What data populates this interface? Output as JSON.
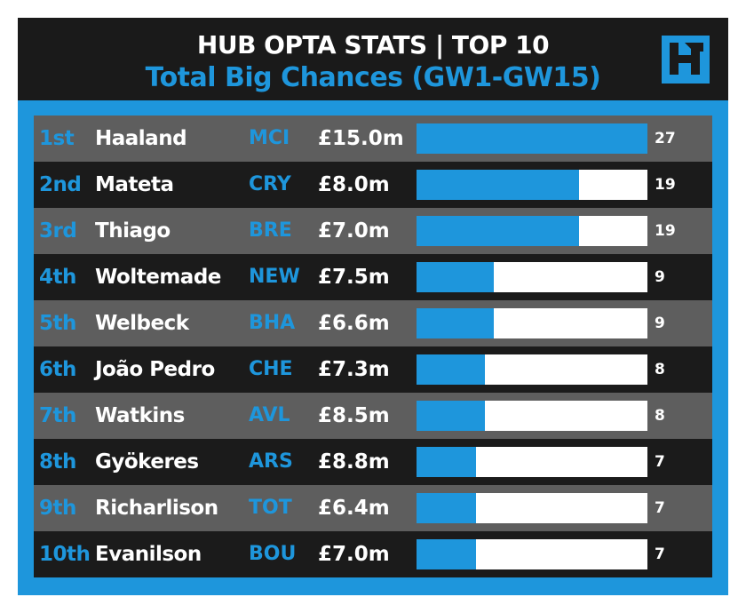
{
  "header": {
    "title": "HUB OPTA STATS | TOP 10",
    "subtitle": "Total Big Chances (GW1-GW15)"
  },
  "colors": {
    "accent": "#1e96dc",
    "header_bg": "#1a1a1a",
    "row_light": "#5e5e5e",
    "row_dark": "#1b1b1b",
    "bar_track": "#ffffff"
  },
  "logo": {
    "icon": "hub-logo-icon"
  },
  "chart_data": {
    "type": "bar",
    "title": "Total Big Chances (GW1-GW15)",
    "xlabel": "",
    "ylabel": "",
    "xlim": [
      0,
      27
    ],
    "categories": [
      "Haaland",
      "Mateta",
      "Thiago",
      "Woltemade",
      "Welbeck",
      "João Pedro",
      "Watkins",
      "Gyökeres",
      "Richarlison",
      "Evanilson"
    ],
    "values": [
      27,
      19,
      19,
      9,
      9,
      8,
      8,
      7,
      7,
      7
    ],
    "rows": [
      {
        "rank": "1st",
        "player": "Haaland",
        "team": "MCI",
        "price": "£15.0m",
        "value": 27
      },
      {
        "rank": "2nd",
        "player": "Mateta",
        "team": "CRY",
        "price": "£8.0m",
        "value": 19
      },
      {
        "rank": "3rd",
        "player": "Thiago",
        "team": "BRE",
        "price": "£7.0m",
        "value": 19
      },
      {
        "rank": "4th",
        "player": "Woltemade",
        "team": "NEW",
        "price": "£7.5m",
        "value": 9
      },
      {
        "rank": "5th",
        "player": "Welbeck",
        "team": "BHA",
        "price": "£6.6m",
        "value": 9
      },
      {
        "rank": "6th",
        "player": "João Pedro",
        "team": "CHE",
        "price": "£7.3m",
        "value": 8
      },
      {
        "rank": "7th",
        "player": "Watkins",
        "team": "AVL",
        "price": "£8.5m",
        "value": 8
      },
      {
        "rank": "8th",
        "player": "Gyökeres",
        "team": "ARS",
        "price": "£8.8m",
        "value": 7
      },
      {
        "rank": "9th",
        "player": "Richarlison",
        "team": "TOT",
        "price": "£6.4m",
        "value": 7
      },
      {
        "rank": "10th",
        "player": "Evanilson",
        "team": "BOU",
        "price": "£7.0m",
        "value": 7
      }
    ]
  }
}
